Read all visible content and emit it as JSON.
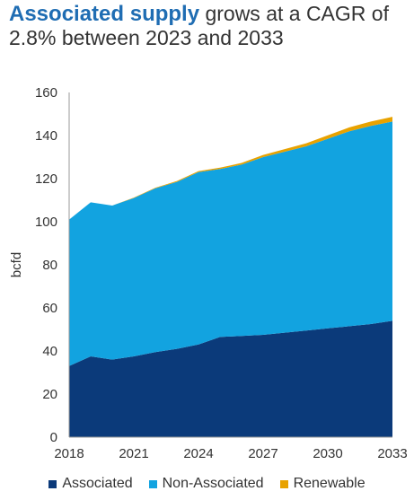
{
  "title": {
    "highlight": "Associated supply",
    "rest": " grows at a CAGR of 2.8% between 2023 and 2033"
  },
  "chart_data": {
    "type": "area",
    "stacked": true,
    "ylabel": "bcfd",
    "ylim": [
      0,
      160
    ],
    "yticks": [
      0,
      20,
      40,
      60,
      80,
      100,
      120,
      140,
      160
    ],
    "xlim": [
      2018,
      2033
    ],
    "xticks": [
      2018,
      2021,
      2024,
      2027,
      2030,
      2033
    ],
    "x": [
      2018,
      2019,
      2020,
      2021,
      2022,
      2023,
      2024,
      2025,
      2026,
      2027,
      2028,
      2029,
      2030,
      2031,
      2032,
      2033
    ],
    "series": [
      {
        "name": "Associated",
        "color": "#0b3a7a",
        "values": [
          33,
          37.5,
          36,
          37.5,
          39.5,
          41,
          43,
          46.5,
          47,
          47.5,
          48.5,
          49.5,
          50.5,
          51.5,
          52.5,
          54
        ]
      },
      {
        "name": "Non-Associated",
        "color": "#12a3e0",
        "values": [
          68,
          71.5,
          71.5,
          73.5,
          76,
          77.5,
          80,
          78,
          79.5,
          82.5,
          84,
          85.5,
          88,
          90.5,
          92,
          92.5
        ]
      },
      {
        "name": "Renewable",
        "color": "#e8a200",
        "values": [
          0,
          0,
          0,
          0.2,
          0.3,
          0.4,
          0.5,
          0.6,
          0.8,
          1.0,
          1.2,
          1.4,
          1.6,
          1.8,
          2.0,
          2.2
        ]
      }
    ],
    "grid": false,
    "legend_position": "bottom"
  }
}
